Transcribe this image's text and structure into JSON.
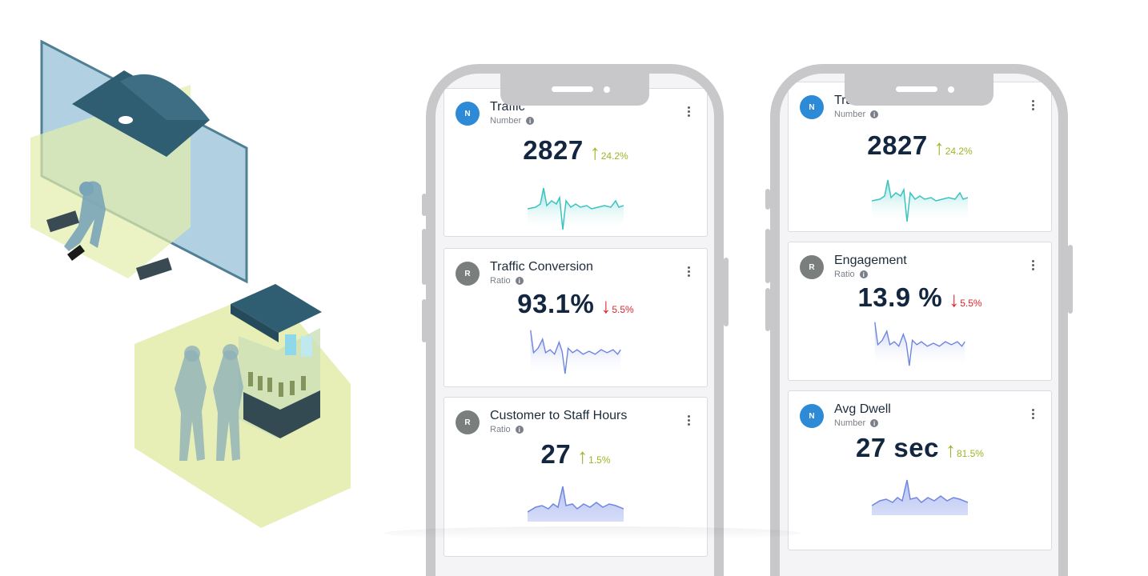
{
  "colors": {
    "up": "#9bb526",
    "down": "#e0242e",
    "teal_line": "#3cc3c0",
    "blue_line": "#6f86e0",
    "navy_text": "#12263f"
  },
  "phone1": {
    "cards": [
      {
        "avatar": "N",
        "title": "Traffic",
        "subtitle": "Number",
        "value": "2827",
        "delta": "24.2%",
        "direction": "up",
        "arrow": "↑",
        "spark": "teal"
      },
      {
        "avatar": "R",
        "title": "Traffic Conversion",
        "subtitle": "Ratio",
        "value": "93.1%",
        "delta": "5.5%",
        "direction": "down",
        "arrow": "↓",
        "spark": "blue"
      },
      {
        "avatar": "R",
        "title": "Customer to Staff Hours",
        "subtitle": "Ratio",
        "value": "27",
        "delta": "1.5%",
        "direction": "up",
        "arrow": "↑",
        "spark": "blue2"
      }
    ]
  },
  "phone2": {
    "cards": [
      {
        "avatar": "N",
        "title": "Traffic",
        "subtitle": "Number",
        "value": "2827",
        "delta": "24.2%",
        "direction": "up",
        "arrow": "↑",
        "spark": "teal"
      },
      {
        "avatar": "R",
        "title": "Engagement",
        "subtitle": "Ratio",
        "value": "13.9 %",
        "delta": "5.5%",
        "direction": "down",
        "arrow": "↓",
        "spark": "blue"
      },
      {
        "avatar": "N",
        "title": "Avg Dwell",
        "subtitle": "Number",
        "value": "27 sec",
        "delta": "81.5%",
        "direction": "up",
        "arrow": "↑",
        "spark": "blue2"
      }
    ]
  },
  "icons": {
    "info": "info-icon",
    "more": "kebab-menu-icon",
    "up": "arrow-up-icon",
    "down": "arrow-down-icon"
  }
}
